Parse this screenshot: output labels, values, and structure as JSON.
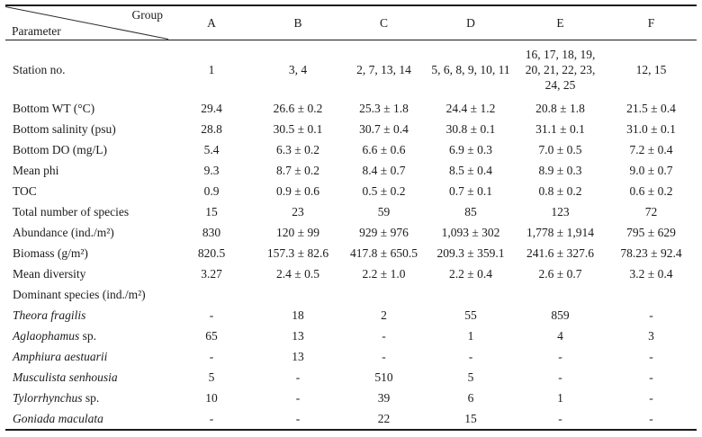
{
  "table": {
    "corner": {
      "group_label": "Group",
      "parameter_label": "Parameter"
    },
    "group_columns": [
      "A",
      "B",
      "C",
      "D",
      "E",
      "F"
    ],
    "rows": [
      {
        "param": "Station no.",
        "values": [
          "1",
          "3, 4",
          "2, 7, 13, 14",
          "5, 6, 8, 9, 10, 11",
          "16, 17, 18, 19, 20, 21, 22, 23, 24, 25",
          "12, 15"
        ]
      },
      {
        "param": "Bottom WT (°C)",
        "values": [
          "29.4",
          "26.6 ± 0.2",
          "25.3 ± 1.8",
          "24.4 ± 1.2",
          "20.8 ± 1.8",
          "21.5 ± 0.4"
        ]
      },
      {
        "param": "Bottom salinity (psu)",
        "values": [
          "28.8",
          "30.5 ± 0.1",
          "30.7 ± 0.4",
          "30.8 ± 0.1",
          "31.1 ± 0.1",
          "31.0 ± 0.1"
        ]
      },
      {
        "param": "Bottom DO (mg/L)",
        "values": [
          "5.4",
          "6.3 ± 0.2",
          "6.6 ± 0.6",
          "6.9 ± 0.3",
          "7.0 ± 0.5",
          "7.2 ± 0.4"
        ]
      },
      {
        "param": "Mean phi",
        "values": [
          "9.3",
          "8.7 ± 0.2",
          "8.4 ± 0.7",
          "8.5 ± 0.4",
          "8.9 ± 0.3",
          "9.0 ± 0.7"
        ]
      },
      {
        "param": "TOC",
        "values": [
          "0.9",
          "0.9 ± 0.6",
          "0.5 ± 0.2",
          "0.7 ± 0.1",
          "0.8 ± 0.2",
          "0.6 ± 0.2"
        ]
      },
      {
        "param": "Total number of species",
        "values": [
          "15",
          "23",
          "59",
          "85",
          "123",
          "72"
        ]
      },
      {
        "param": "Abundance (ind./m²)",
        "values": [
          "830",
          "120 ± 99",
          "929 ± 976",
          "1,093 ± 302",
          "1,778 ± 1,914",
          "795 ± 629"
        ]
      },
      {
        "param": "Biomass (g/m²)",
        "values": [
          "820.5",
          "157.3 ± 82.6",
          "417.8 ± 650.5",
          "209.3 ± 359.1",
          "241.6 ± 327.6",
          "78.23 ± 92.4"
        ]
      },
      {
        "param": "Mean diversity",
        "values": [
          "3.27",
          "2.4 ± 0.5",
          "2.2 ± 1.0",
          "2.2 ± 0.4",
          "2.6 ± 0.7",
          "3.2 ± 0.4"
        ]
      },
      {
        "param": "Dominant species (ind./m²)",
        "values": [
          "",
          "",
          "",
          "",
          "",
          ""
        ]
      },
      {
        "param": "Theora fragilis",
        "italic": true,
        "values": [
          "-",
          "18",
          "2",
          "55",
          "859",
          "-"
        ]
      },
      {
        "param": "Aglaophamus",
        "suffix": "sp.",
        "italic": true,
        "values": [
          "65",
          "13",
          "-",
          "1",
          "4",
          "3"
        ]
      },
      {
        "param": "Amphiura aestuarii",
        "italic": true,
        "values": [
          "-",
          "13",
          "-",
          "-",
          "-",
          "-"
        ]
      },
      {
        "param": "Musculista senhousia",
        "italic": true,
        "values": [
          "5",
          "-",
          "510",
          "5",
          "-",
          "-"
        ]
      },
      {
        "param": "Tylorrhynchus",
        "suffix": "sp.",
        "italic": true,
        "values": [
          "10",
          "-",
          "39",
          "6",
          "1",
          "-"
        ]
      },
      {
        "param": "Goniada maculata",
        "italic": true,
        "values": [
          "-",
          "-",
          "22",
          "15",
          "-",
          "-"
        ]
      }
    ]
  }
}
